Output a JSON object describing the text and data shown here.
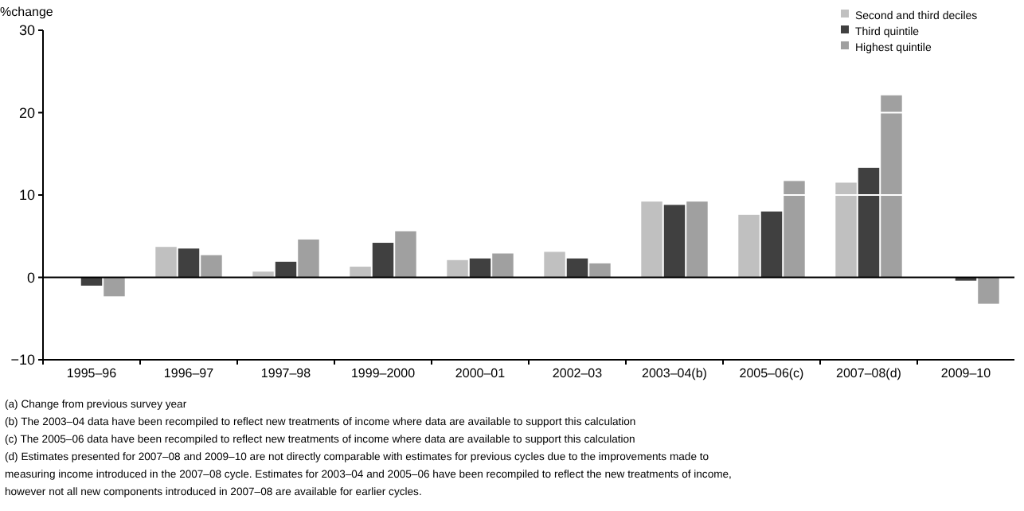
{
  "chart_data": {
    "type": "bar",
    "ylabel": "%change",
    "categories": [
      "1995–96",
      "1996–97",
      "1997–98",
      "1999–2000",
      "2000–01",
      "2002–03",
      "2003–04(b)",
      "2005–06(c)",
      "2007–08(d)",
      "2009–10"
    ],
    "series": [
      {
        "name": "Second and third deciles",
        "color": "#c0c0c0",
        "values": [
          0,
          3.7,
          0.7,
          1.3,
          2.1,
          3.1,
          9.2,
          7.6,
          11.5,
          0
        ]
      },
      {
        "name": "Third quintile",
        "color": "#404040",
        "values": [
          -1.0,
          3.5,
          1.9,
          4.2,
          2.3,
          2.3,
          8.8,
          8.0,
          13.3,
          -0.4
        ]
      },
      {
        "name": "Highest quintile",
        "color": "#a0a0a0",
        "values": [
          -2.3,
          2.7,
          4.6,
          5.6,
          2.9,
          1.7,
          9.2,
          11.7,
          22.1,
          -3.2
        ]
      }
    ],
    "ylim": [
      -10,
      30
    ],
    "yticks": [
      -10,
      0,
      10,
      20,
      30
    ],
    "grid": "y",
    "legend": "top right",
    "annotations": [
      "(a) Change from previous survey year",
      "(b) The 2003–04 data have been recompiled to reflect new treatments of income where data are available to support this calculation",
      "(c) The 2005–06 data have been recompiled to reflect new treatments of income where data are available to support this calculation",
      "(d) Estimates presented for 2007–08 and 2009–10 are not directly comparable with estimates for previous cycles due to the improvements made to measuring income introduced in the 2007–08 cycle. Estimates for 2003–04 and 2005–06 have been recompiled to reflect the new treatments of income, however not all new components introduced in 2007–08 are available for earlier cycles."
    ]
  }
}
